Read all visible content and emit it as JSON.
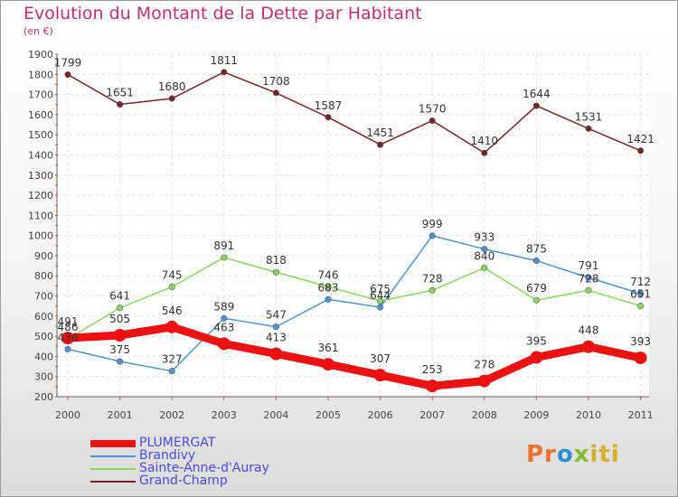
{
  "chart_data": {
    "type": "line",
    "title": "Evolution du Montant de la Dette par Habitant",
    "subtitle": "(en €)",
    "x": [
      "2000",
      "2001",
      "2002",
      "2003",
      "2004",
      "2005",
      "2006",
      "2007",
      "2008",
      "2009",
      "2010",
      "2011"
    ],
    "ylim": [
      200,
      1900
    ],
    "yticks": [
      "200",
      "300",
      "400",
      "500",
      "600",
      "700",
      "800",
      "900",
      "1000",
      "1100",
      "1200",
      "1300",
      "1400",
      "1500",
      "1600",
      "1700",
      "1800",
      "1900"
    ],
    "grid": true,
    "legend_position": "bottom-left",
    "series": [
      {
        "name": "PLUMERGAT",
        "color": "#ee1111",
        "values": [
          491,
          505,
          546,
          463,
          413,
          361,
          307,
          253,
          278,
          395,
          448,
          393
        ]
      },
      {
        "name": "Brandivy",
        "color": "#4c94d6",
        "values": [
          436,
          375,
          327,
          589,
          547,
          683,
          644,
          999,
          933,
          875,
          791,
          712
        ]
      },
      {
        "name": "Sainte-Anne-d'Auray",
        "color": "#8bd860",
        "values": [
          486,
          641,
          745,
          891,
          818,
          746,
          675,
          728,
          840,
          679,
          728,
          651
        ]
      },
      {
        "name": "Grand-Champ",
        "color": "#7a2326",
        "values": [
          1799,
          1651,
          1680,
          1811,
          1708,
          1587,
          1451,
          1570,
          1410,
          1644,
          1531,
          1421
        ]
      }
    ]
  },
  "brand": {
    "part1": "Pr",
    "part2": "o",
    "part3": "x",
    "part4": "iti"
  }
}
